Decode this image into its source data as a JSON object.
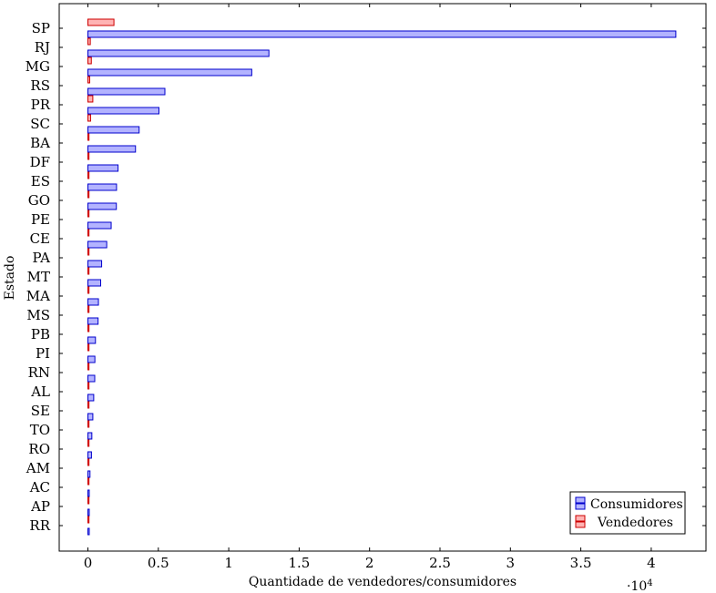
{
  "chart_data": {
    "type": "bar",
    "orientation": "horizontal",
    "categories": [
      "SP",
      "RJ",
      "MG",
      "RS",
      "PR",
      "SC",
      "BA",
      "DF",
      "ES",
      "GO",
      "PE",
      "CE",
      "PA",
      "MT",
      "MA",
      "MS",
      "PB",
      "PI",
      "RN",
      "AL",
      "SE",
      "TO",
      "RO",
      "AM",
      "AC",
      "AP",
      "RR"
    ],
    "series": [
      {
        "name": "Consumidores",
        "color_fill": "#b3b3ff",
        "color_stroke": "#0000cc",
        "values": [
          41746,
          12852,
          11635,
          5466,
          5045,
          3637,
          3380,
          2140,
          2033,
          2020,
          1652,
          1336,
          975,
          907,
          747,
          722,
          536,
          495,
          485,
          413,
          350,
          280,
          253,
          148,
          81,
          68,
          46
        ]
      },
      {
        "name": "Vendedores",
        "color_fill": "#ffb3b3",
        "color_stroke": "#cc0000",
        "values": [
          1849,
          171,
          244,
          129,
          349,
          190,
          19,
          30,
          23,
          40,
          9,
          13,
          4,
          13,
          1,
          5,
          6,
          1,
          5,
          0,
          2,
          1,
          2,
          2,
          1,
          0,
          0
        ]
      }
    ],
    "xlabel": "Quantidade de vendedores/consumidores",
    "ylabel": "Estado",
    "xlim": [
      -2000,
      44000
    ],
    "x_ticks": [
      0,
      5000,
      10000,
      15000,
      20000,
      25000,
      30000,
      35000,
      40000
    ],
    "x_tick_labels": [
      "0",
      "0.5",
      "1",
      "1.5",
      "2",
      "2.5",
      "3",
      "3.5",
      "4"
    ],
    "x_scale_label": {
      "base": "·10",
      "exponent": "4"
    },
    "grid": false,
    "legend_position": "bottom-right"
  }
}
